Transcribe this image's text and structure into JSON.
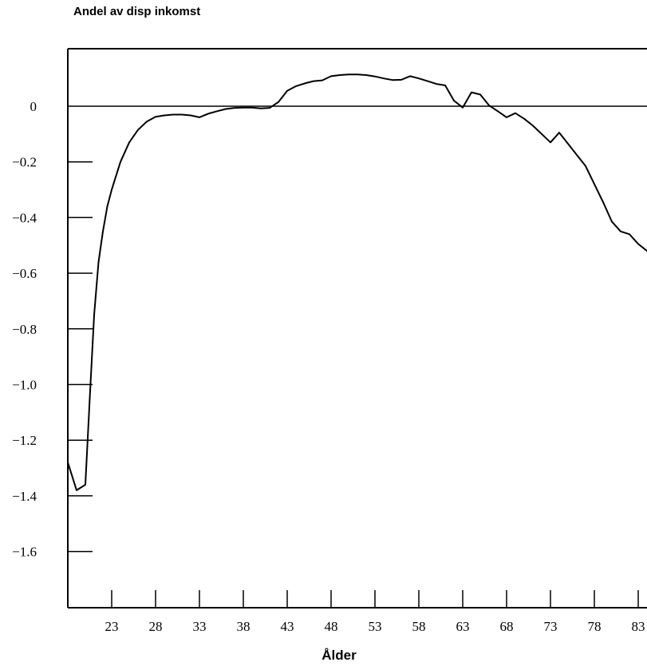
{
  "chart_data": {
    "type": "line",
    "title": "Andel av disp inkomst",
    "xlabel": "Ålder",
    "ylabel": "",
    "xlim": [
      18,
      85
    ],
    "ylim": [
      -1.75,
      0.2
    ],
    "x_ticks": [
      23,
      28,
      33,
      38,
      43,
      48,
      53,
      58,
      63,
      68,
      73,
      78,
      83
    ],
    "y_ticks": [
      {
        "value": 0,
        "label": "0"
      },
      {
        "value": -0.2,
        "label": "−0.2"
      },
      {
        "value": -0.4,
        "label": "−0.4"
      },
      {
        "value": -0.6,
        "label": "−0.6"
      },
      {
        "value": -0.8,
        "label": "−0.8"
      },
      {
        "value": -1.0,
        "label": "−1.0"
      },
      {
        "value": -1.2,
        "label": "−1.2"
      },
      {
        "value": -1.4,
        "label": "−1.4"
      },
      {
        "value": -1.6,
        "label": "−1.6"
      }
    ],
    "grid": false,
    "zero_line": true,
    "series": [
      {
        "color": "#000000",
        "x": [
          18,
          19,
          20,
          20.5,
          21,
          21.5,
          22,
          22.5,
          23,
          24,
          25,
          26,
          27,
          28,
          29,
          30,
          31,
          32,
          33,
          34,
          35,
          36,
          37,
          38,
          39,
          40,
          41,
          42,
          43,
          44,
          45,
          46,
          47,
          48,
          49,
          50,
          51,
          52,
          53,
          54,
          55,
          56,
          57,
          58,
          59,
          60,
          61,
          62,
          63,
          64,
          65,
          66,
          67,
          68,
          69,
          70,
          71,
          72,
          73,
          74,
          75,
          76,
          77,
          78,
          79,
          80,
          81,
          82,
          83,
          84,
          85
        ],
        "y": [
          -1.28,
          -1.38,
          -1.36,
          -1.05,
          -0.75,
          -0.56,
          -0.45,
          -0.36,
          -0.3,
          -0.2,
          -0.13,
          -0.085,
          -0.055,
          -0.038,
          -0.033,
          -0.03,
          -0.03,
          -0.033,
          -0.04,
          -0.027,
          -0.018,
          -0.01,
          -0.006,
          -0.005,
          -0.005,
          -0.008,
          -0.006,
          0.015,
          0.055,
          0.072,
          0.082,
          0.09,
          0.093,
          0.108,
          0.112,
          0.114,
          0.114,
          0.112,
          0.107,
          0.1,
          0.094,
          0.095,
          0.108,
          0.1,
          0.09,
          0.08,
          0.075,
          0.02,
          -0.005,
          0.05,
          0.042,
          0.003,
          -0.018,
          -0.04,
          -0.025,
          -0.045,
          -0.07,
          -0.1,
          -0.13,
          -0.095,
          -0.135,
          -0.175,
          -0.215,
          -0.28,
          -0.345,
          -0.415,
          -0.45,
          -0.46,
          -0.495,
          -0.52,
          -0.56
        ]
      }
    ]
  }
}
